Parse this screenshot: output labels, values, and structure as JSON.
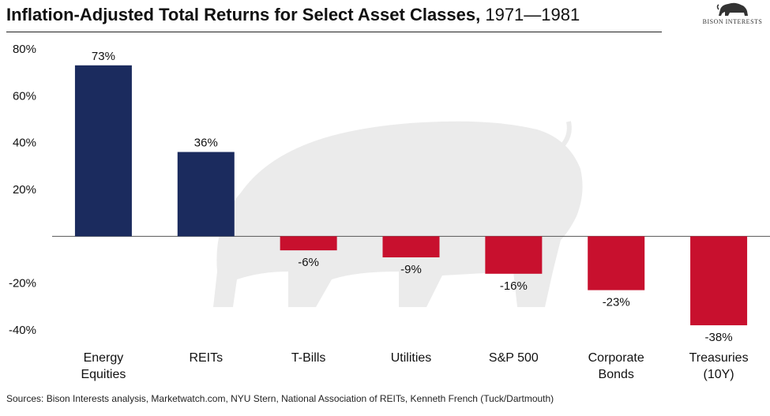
{
  "header": {
    "title_bold": "Inflation-Adjusted Total Returns for Select Asset Classes,",
    "title_years": " 1971—1981",
    "logo_text": "BISON INTERESTS",
    "logo_icon": "bison-icon"
  },
  "chart_data": {
    "type": "bar",
    "title": "Inflation-Adjusted Total Returns for Select Asset Classes, 1971—1981",
    "categories": [
      [
        "Energy",
        "Equities"
      ],
      [
        "REITs"
      ],
      [
        "T-Bills"
      ],
      [
        "Utilities"
      ],
      [
        "S&P 500"
      ],
      [
        "Corporate",
        "Bonds"
      ],
      [
        "Treasuries",
        "(10Y)"
      ]
    ],
    "values": [
      73,
      36,
      -6,
      -9,
      -16,
      -23,
      -38
    ],
    "value_labels": [
      "73%",
      "36%",
      "-6%",
      "-9%",
      "-16%",
      "-23%",
      "-38%"
    ],
    "ylim": [
      -40,
      80
    ],
    "yticks": [
      80,
      60,
      40,
      20,
      -20,
      -40
    ],
    "ytick_labels": [
      "80%",
      "60%",
      "40%",
      "20%",
      "-20%",
      "-40%"
    ],
    "grid": false,
    "colors": {
      "positive": "#1b2b5e",
      "negative": "#c8102e",
      "watermark": "#e8e8e8"
    }
  },
  "footer": {
    "source": "Sources: Bison Interests analysis, Marketwatch.com, NYU Stern, National Association of REITs, Kenneth French (Tuck/Dartmouth)"
  }
}
